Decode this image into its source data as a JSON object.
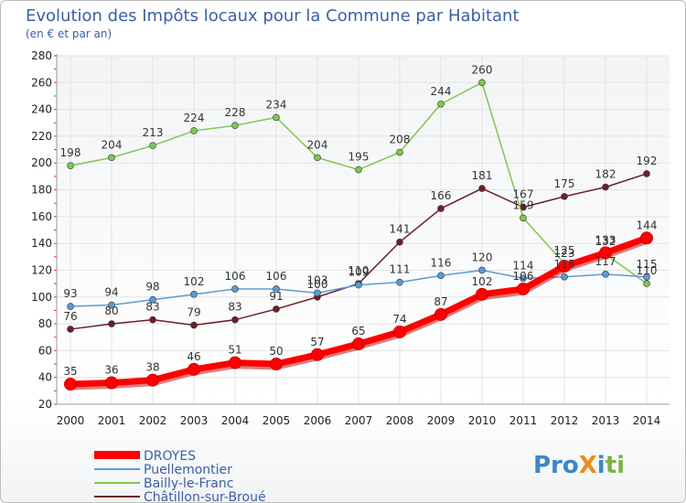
{
  "chart_data": {
    "type": "line",
    "title": "Evolution des Impôts locaux pour la Commune par Habitant",
    "subtitle": "(en € et par an)",
    "xlabel": "",
    "ylabel": "",
    "ylim": [
      20,
      280
    ],
    "yticks": [
      20,
      40,
      60,
      80,
      100,
      120,
      140,
      160,
      180,
      200,
      220,
      240,
      260,
      280
    ],
    "x": [
      "2000",
      "2001",
      "2002",
      "2003",
      "2004",
      "2005",
      "2006",
      "2007",
      "2008",
      "2009",
      "2010",
      "2011",
      "2012",
      "2013",
      "2014"
    ],
    "grid": true,
    "legend": "bottom-left",
    "series": [
      {
        "name": "DROYES",
        "color": "#ff0000",
        "values": [
          35,
          36,
          38,
          46,
          51,
          50,
          57,
          65,
          74,
          87,
          102,
          106,
          123,
          133,
          144
        ]
      },
      {
        "name": "Puellemontier",
        "color": "#5b9bd5",
        "values": [
          93,
          94,
          98,
          102,
          106,
          106,
          103,
          109,
          111,
          116,
          120,
          114,
          115,
          117,
          115
        ]
      },
      {
        "name": "Bailly-le-Franc",
        "color": "#80c652",
        "values": [
          198,
          204,
          213,
          224,
          228,
          234,
          204,
          195,
          208,
          244,
          260,
          159,
          125,
          132,
          110
        ]
      },
      {
        "name": "Châtillon-sur-Broué",
        "color": "#6b1f27",
        "values": [
          76,
          80,
          83,
          79,
          83,
          91,
          100,
          110,
          141,
          166,
          181,
          167,
          175,
          182,
          192
        ]
      }
    ]
  },
  "watermark": "ProXiti"
}
